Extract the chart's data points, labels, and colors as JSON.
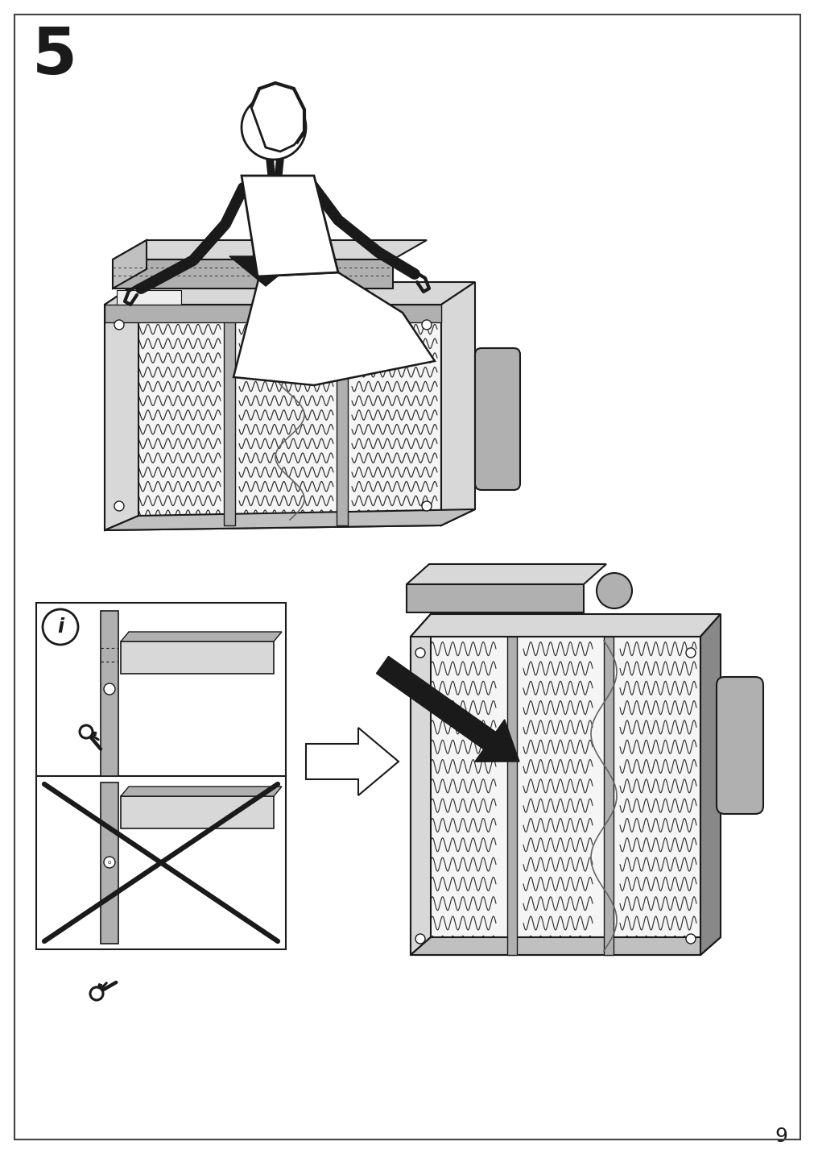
{
  "page_number": "9",
  "step_number": "5",
  "bg_color": "#ffffff",
  "border_color": "#444444",
  "line_color": "#1a1a1a",
  "gray_light": "#d8d8d8",
  "gray_medium": "#b0b0b0",
  "gray_dark": "#888888",
  "wood_color": "#c0c0c0",
  "spring_color": "#333333"
}
